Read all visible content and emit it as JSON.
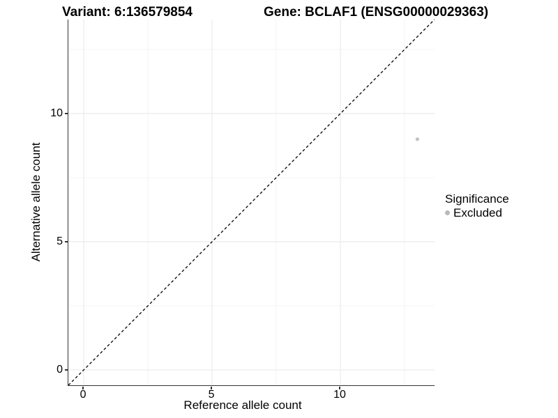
{
  "colors": {
    "background": "#ffffff",
    "text": "#000000",
    "axis": "#333333",
    "grid_major": "#ebebeb",
    "grid_minor": "#f4f4f4",
    "excluded_point": "#c1c1c1",
    "identity_line": "#000000"
  },
  "chart_data": {
    "type": "scatter",
    "title_left": "Variant: 6:136579854",
    "title_right": "Gene: BCLAF1 (ENSG00000029363)",
    "xlabel": "Reference allele count",
    "ylabel": "Alternative allele count",
    "xlim": [
      -0.6,
      13.67
    ],
    "ylim": [
      -0.6,
      13.67
    ],
    "x_major_ticks": [
      0,
      5,
      10
    ],
    "y_major_ticks": [
      0,
      5,
      10
    ],
    "x_minor_ticks": [
      2.5,
      7.5,
      12.5
    ],
    "y_minor_ticks": [
      2.5,
      7.5,
      12.5
    ],
    "grid": "major+minor",
    "reference_line": {
      "type": "identity",
      "style": "dashed",
      "color": "#000000"
    },
    "series": [
      {
        "name": "Excluded",
        "marker": "circle",
        "color": "#c1c1c1",
        "points": [
          [
            13,
            9
          ]
        ]
      }
    ],
    "legend": {
      "title": "Significance",
      "position": "right",
      "entries": [
        {
          "label": "Excluded",
          "color": "#b9b9b9"
        }
      ]
    }
  }
}
